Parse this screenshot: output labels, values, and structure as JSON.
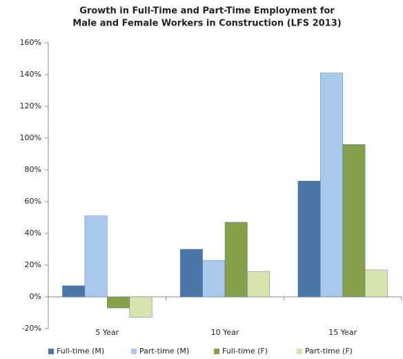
{
  "chart_data": {
    "type": "bar",
    "title": [
      "Growth in Full-Time and Part-Time Employment for",
      "Male and Female Workers in Construction (LFS 2013)"
    ],
    "categories": [
      "5 Year",
      "10 Year",
      "15 Year"
    ],
    "series": [
      {
        "name": "Full-time (M)",
        "color": "#4a76a8",
        "values": [
          7,
          30,
          73
        ]
      },
      {
        "name": "Part-time (M)",
        "color": "#a9c8ee",
        "values": [
          51,
          23,
          141
        ]
      },
      {
        "name": "Full-time (F)",
        "color": "#86a04a",
        "values": [
          -7,
          47,
          96
        ]
      },
      {
        "name": "Part-time (F)",
        "color": "#d6e4ad",
        "values": [
          -13,
          16,
          17
        ]
      }
    ],
    "ylim": [
      -20,
      160
    ],
    "yticks": [
      {
        "value": -20,
        "label": "-20%"
      },
      {
        "value": 0,
        "label": "0%"
      },
      {
        "value": 20,
        "label": "20%"
      },
      {
        "value": 40,
        "label": "40%"
      },
      {
        "value": 60,
        "label": "60%"
      },
      {
        "value": 80,
        "label": "80%"
      },
      {
        "value": 100,
        "label": "100%"
      },
      {
        "value": 120,
        "label": "120%"
      },
      {
        "value": 140,
        "label": "140%"
      },
      {
        "value": 160,
        "label": "160%"
      }
    ],
    "grid": false,
    "legend": "bottom"
  }
}
